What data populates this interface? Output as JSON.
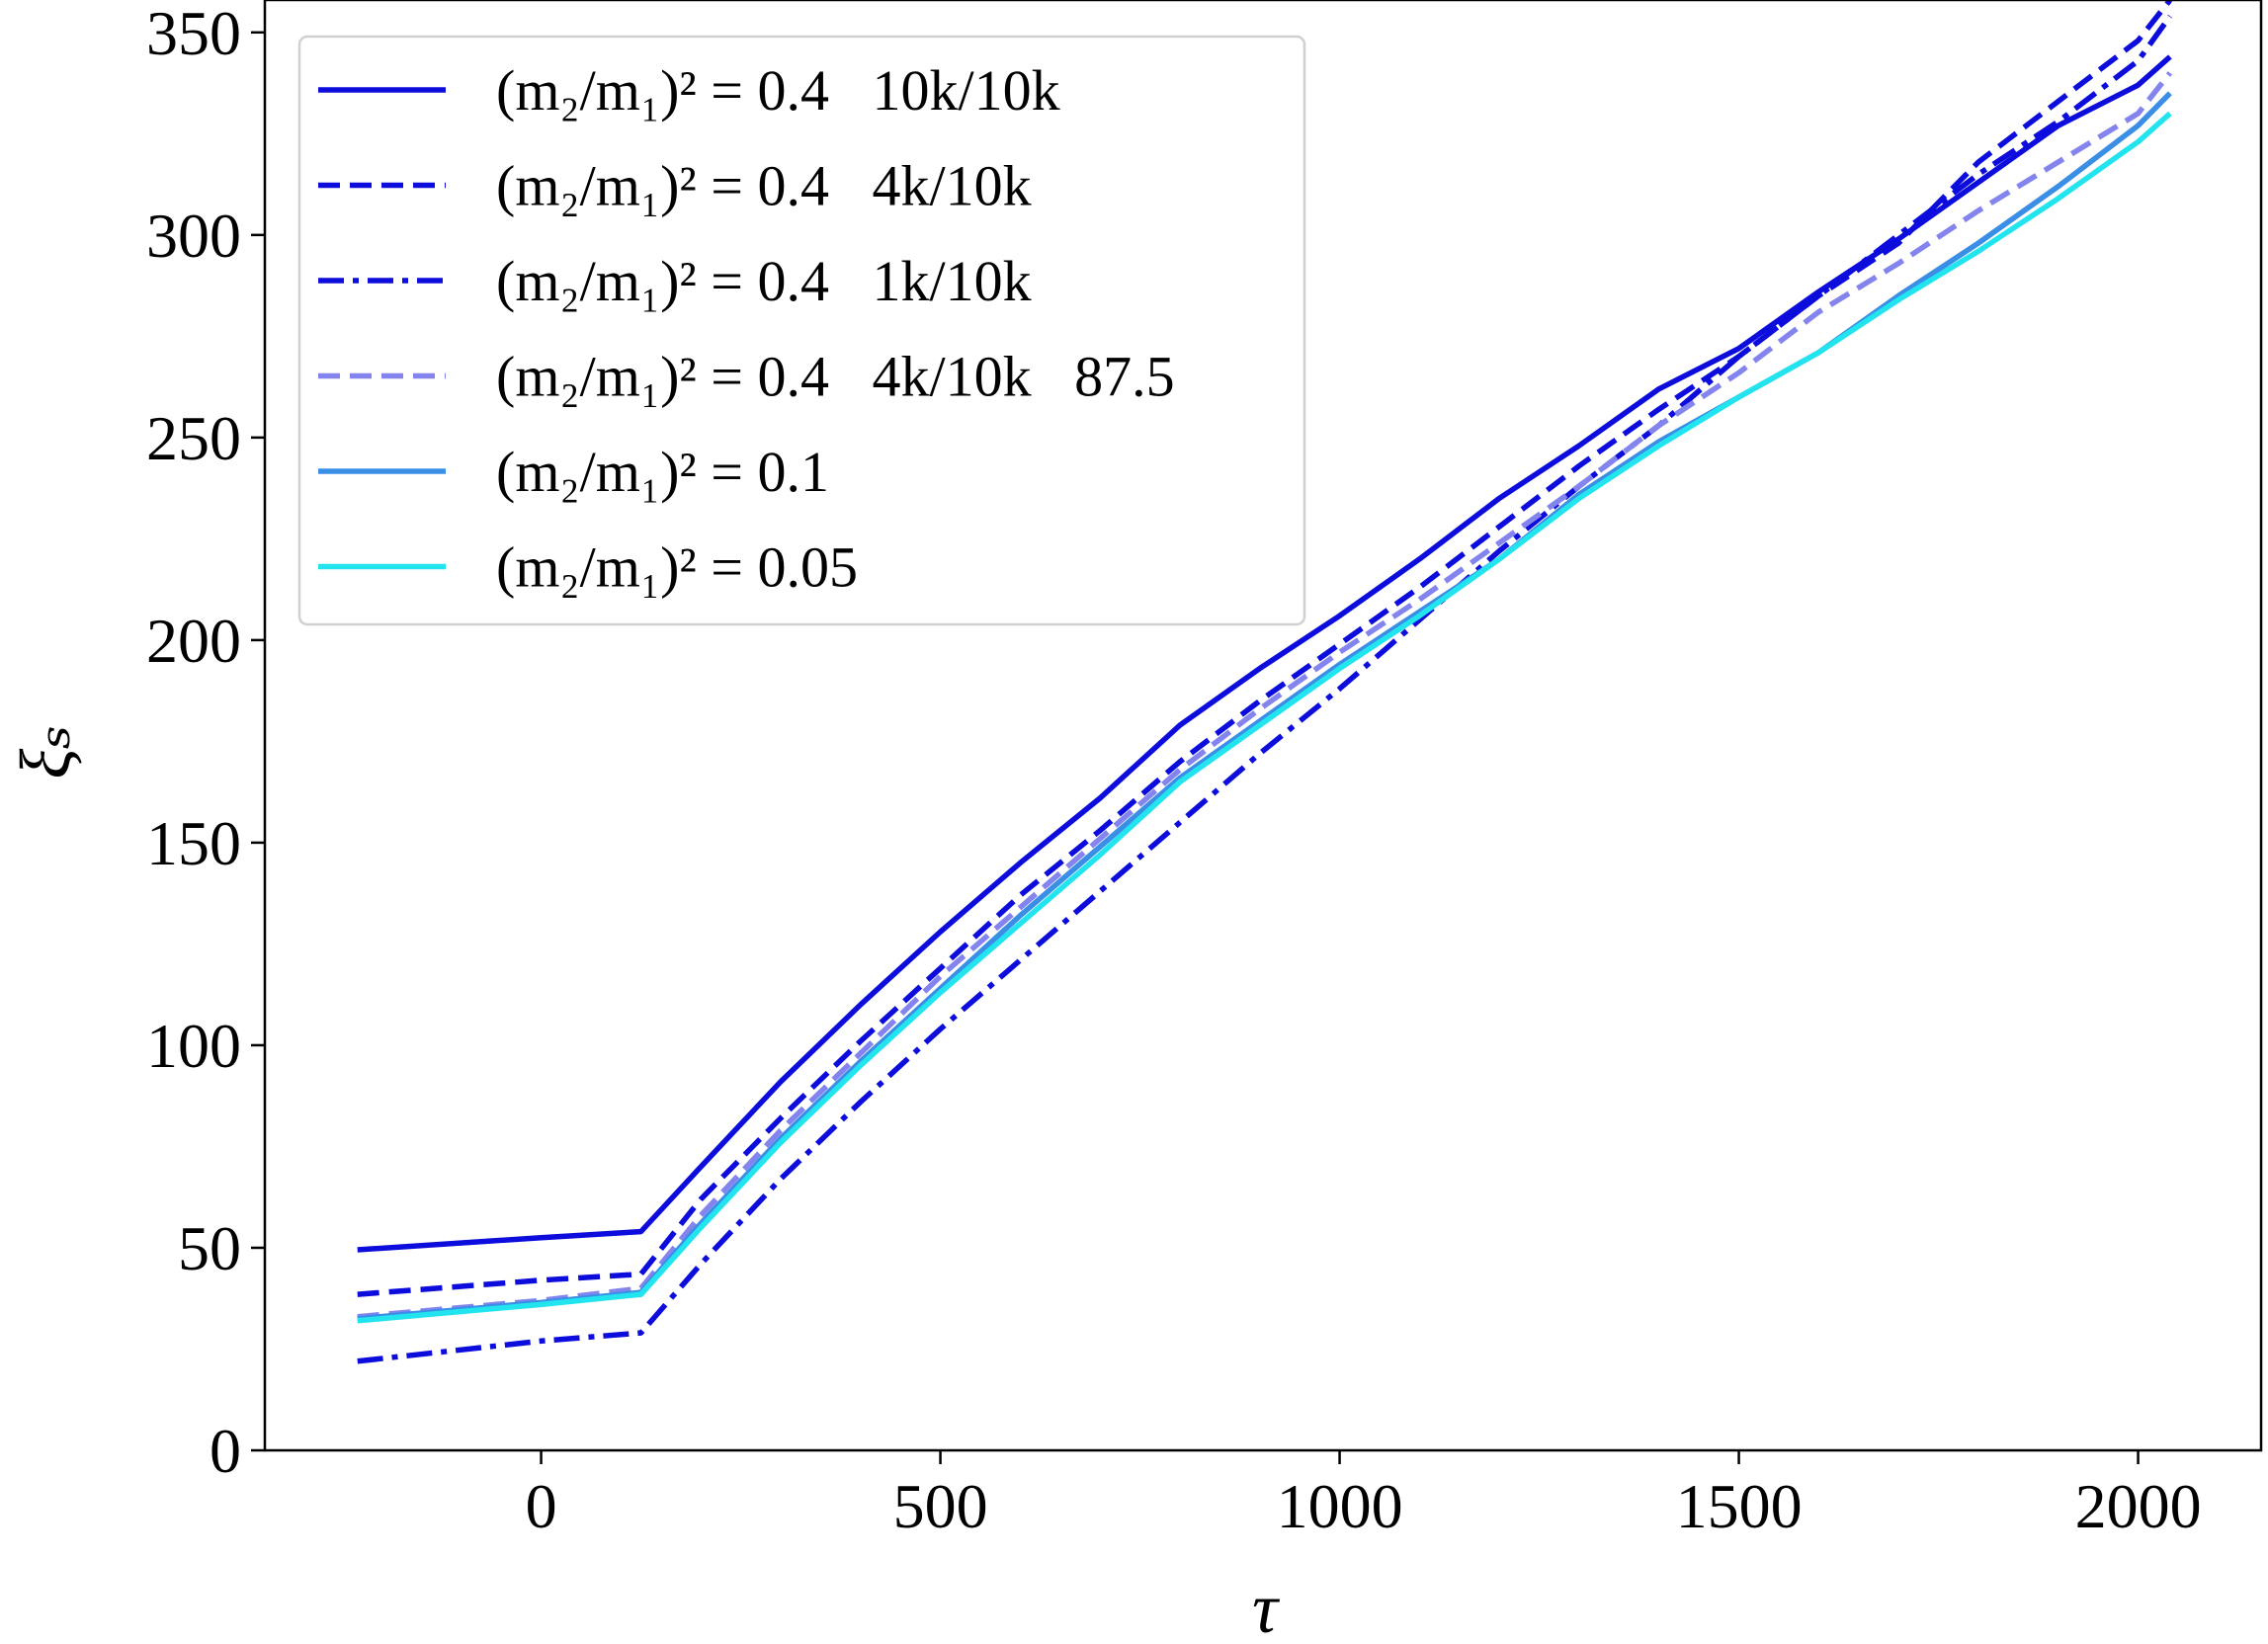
{
  "chart_data": {
    "type": "line",
    "x_label": "τ",
    "y_label": "ξₛ",
    "x": [
      -230,
      0,
      125,
      200,
      300,
      400,
      500,
      600,
      700,
      800,
      900,
      1000,
      1100,
      1200,
      1300,
      1400,
      1500,
      1600,
      1700,
      1800,
      1900,
      2000,
      2040
    ],
    "series": [
      {
        "name": "(m₂/m₁)² = 0.4   10k/10k",
        "color": "#0c0cdc",
        "style": "solid",
        "values": [
          49.5,
          52.5,
          54,
          70,
          91,
          110,
          128,
          145,
          161,
          179,
          193,
          206,
          220,
          235,
          248,
          262,
          272,
          286,
          299,
          313,
          327,
          337,
          344
        ]
      },
      {
        "name": "(m₂/m₁)² = 0.4   4k/10k",
        "color": "#0c0cdc",
        "style": "dashed",
        "values": [
          38.5,
          42,
          43.5,
          62,
          82,
          101,
          119,
          137,
          153,
          170,
          185,
          199,
          213,
          228,
          243,
          257,
          270,
          285,
          298,
          318,
          333,
          348,
          358
        ]
      },
      {
        "name": "(m₂/m₁)² = 0.4   1k/10k",
        "color": "#0c0cdc",
        "style": "dashdot",
        "values": [
          22,
          27,
          29,
          46,
          67,
          86,
          104,
          121,
          138,
          155,
          172,
          188,
          205,
          222,
          238,
          253,
          270,
          285,
          300,
          315,
          328,
          343,
          354
        ]
      },
      {
        "name": "(m₂/m₁)² = 0.4   4k/10k   87.5",
        "color": "#8484ee",
        "style": "dashed",
        "values": [
          33,
          37,
          40,
          58,
          79,
          98,
          117,
          134,
          151,
          168,
          183,
          197,
          210,
          224,
          238,
          253,
          266,
          281,
          293,
          306,
          318,
          330,
          340
        ]
      },
      {
        "name": "(m₂/m₁)² = 0.1",
        "color": "#3a8ee6",
        "style": "solid",
        "values": [
          32.5,
          36.5,
          39,
          56,
          77,
          96,
          114,
          132,
          149,
          166,
          180,
          194,
          207,
          220,
          236,
          249,
          260,
          271,
          285,
          298,
          312,
          327,
          335
        ]
      },
      {
        "name": "(m₂/m₁)² = 0.05",
        "color": "#22e4ee",
        "style": "solid",
        "values": [
          32,
          36,
          38.5,
          55,
          76,
          95,
          113,
          130,
          147,
          165,
          179,
          193,
          206,
          220,
          235,
          248,
          260,
          271,
          284,
          296,
          309,
          323,
          330
        ]
      }
    ],
    "xlim": [
      -346,
      2154
    ],
    "ylim": [
      0,
      358
    ],
    "xticks": [
      0,
      500,
      1000,
      1500,
      2000
    ],
    "yticks": [
      0,
      50,
      100,
      150,
      200,
      250,
      300,
      350
    ],
    "legend": "upper left"
  }
}
